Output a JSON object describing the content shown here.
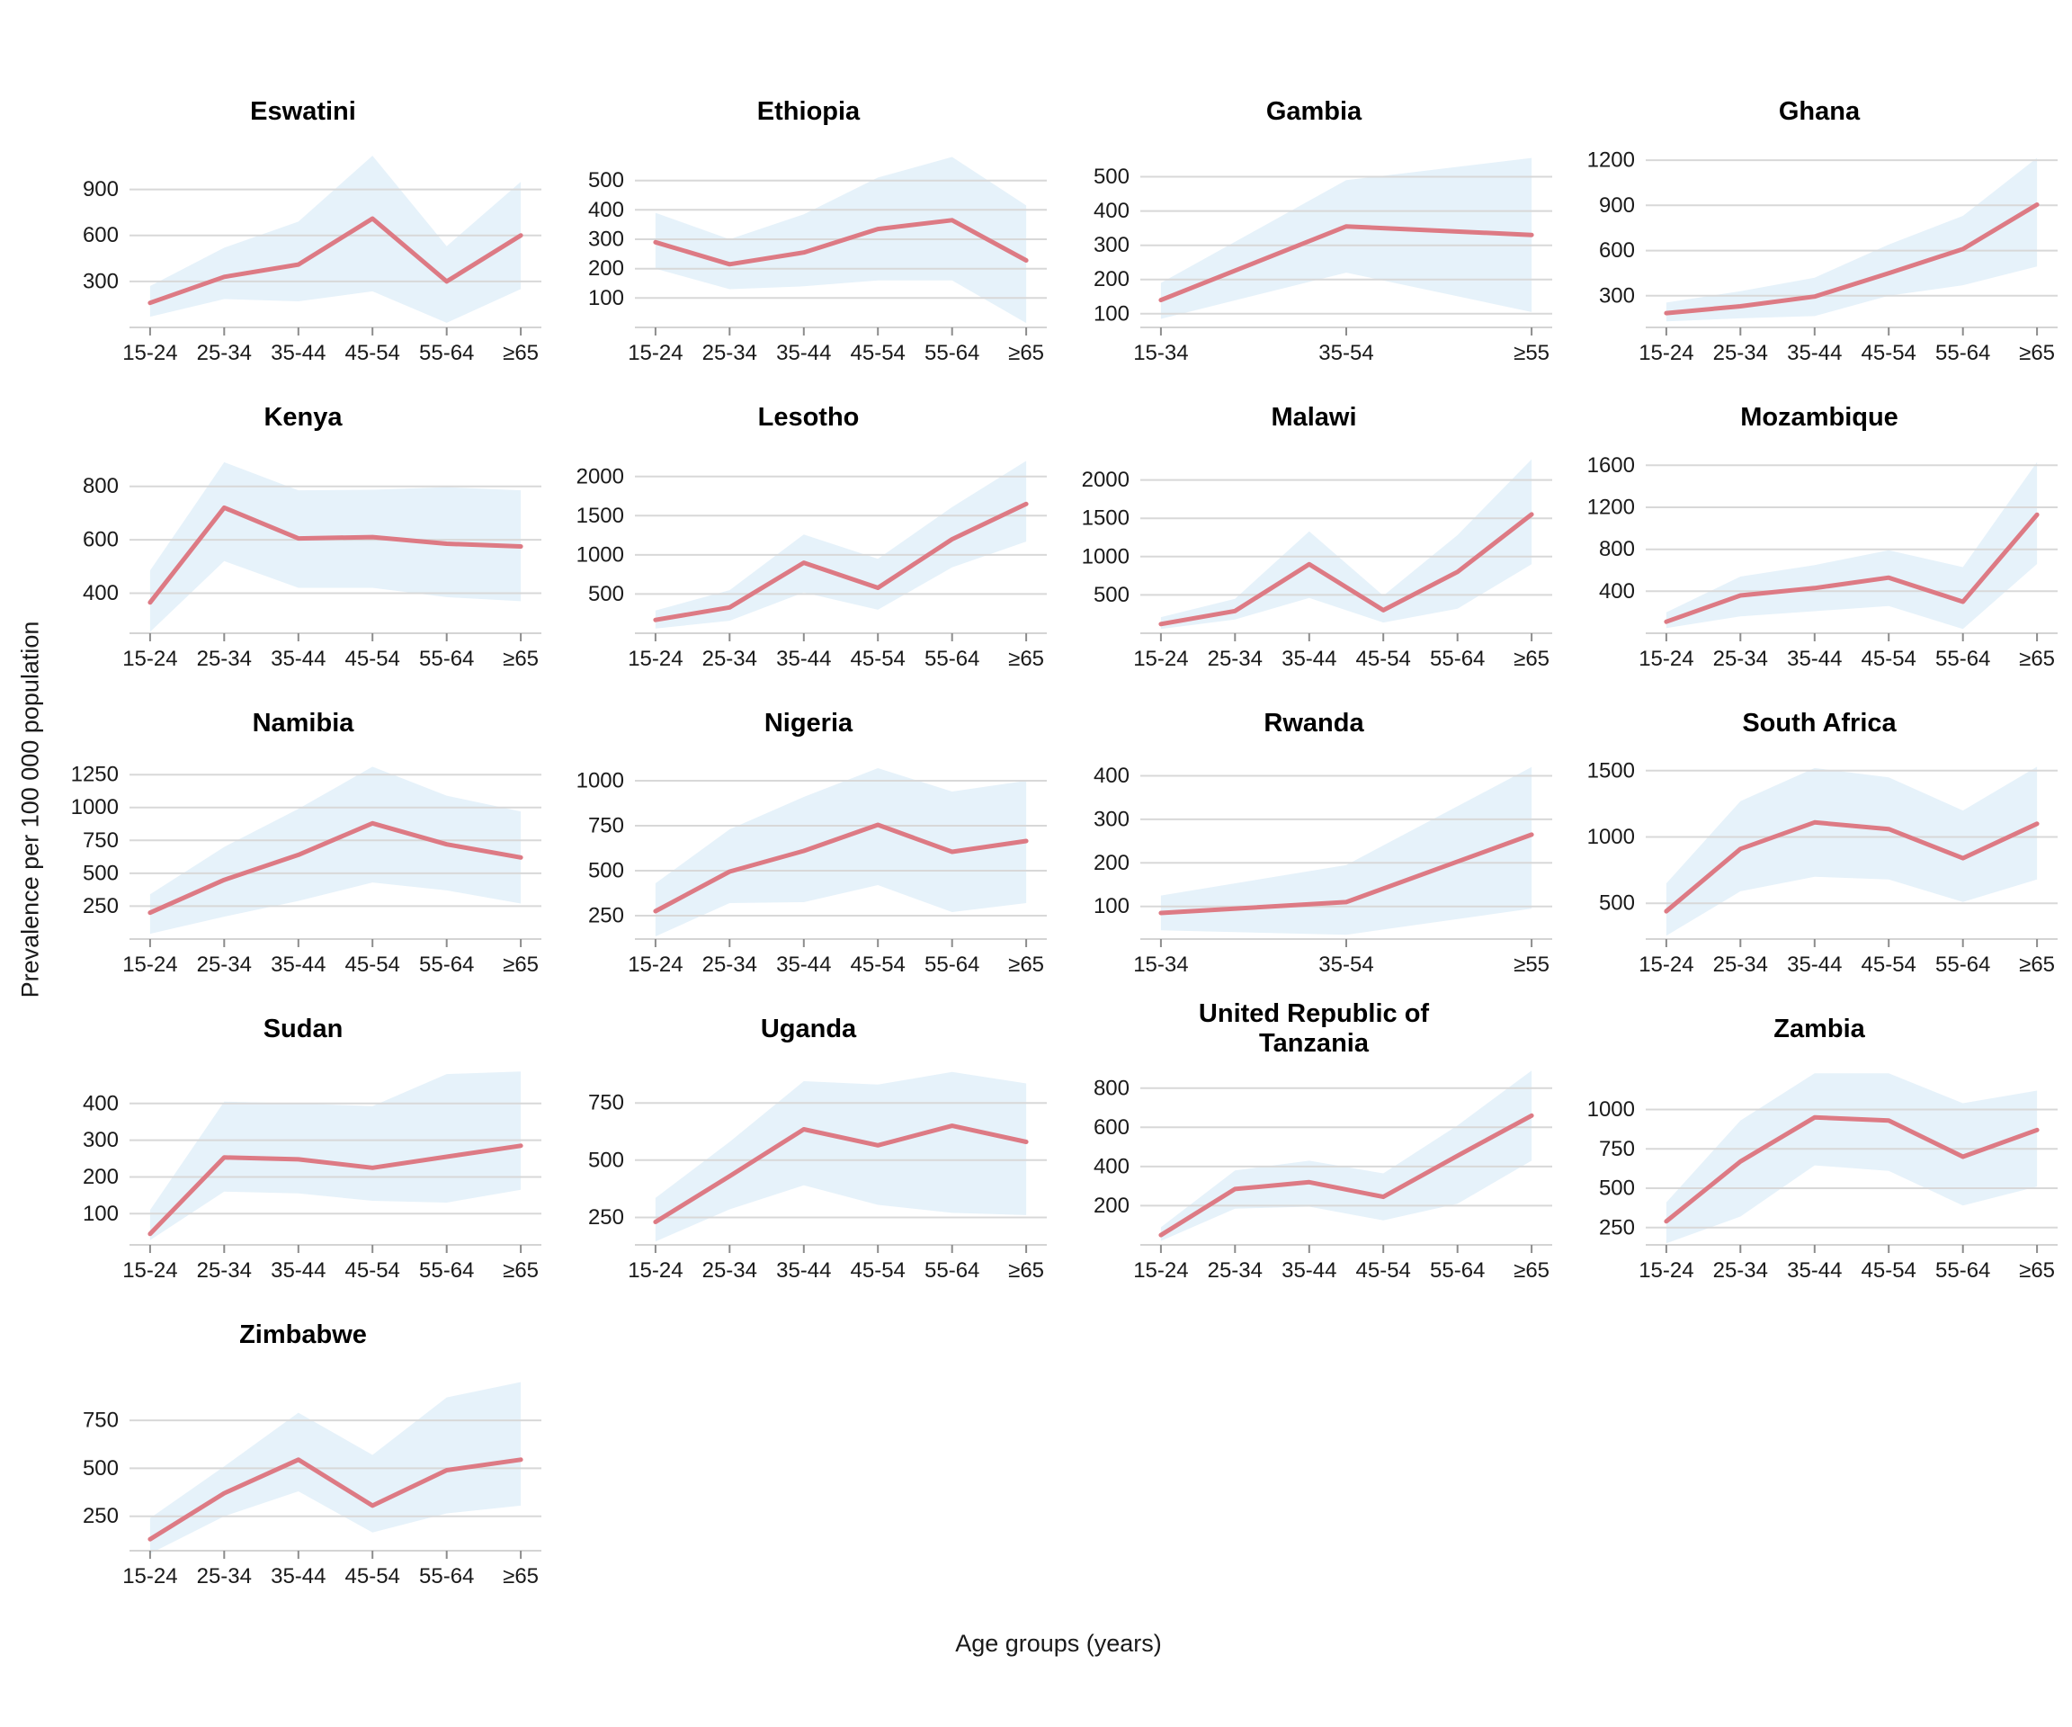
{
  "figure": {
    "ylabel": "Prevalence per 100 000 population",
    "xlabel": "Age groups (years)"
  },
  "colors": {
    "line": "#DD7A84",
    "band": "#E6F2FA",
    "grid": "#D8D8D8",
    "axis": "#D4D4D4",
    "tick": "#8C8C8C",
    "tick_text": "#1A1A1A",
    "title_text": "#000000"
  },
  "chart_data": [
    {
      "type": "line",
      "title": "Eswatini",
      "categories": [
        "15-24",
        "25-34",
        "35-44",
        "45-54",
        "55-64",
        "≥65"
      ],
      "values": [
        160,
        330,
        410,
        710,
        300,
        600
      ],
      "lower": [
        70,
        185,
        170,
        235,
        30,
        250
      ],
      "upper": [
        270,
        520,
        690,
        1120,
        530,
        950
      ],
      "yticks": [
        300,
        600,
        900
      ],
      "ylim": [
        0,
        1150
      ],
      "series": [
        {
          "name": "prevalence",
          "values": [
            160,
            330,
            410,
            710,
            300,
            600
          ]
        }
      ],
      "legend": "none",
      "grid": "horizontal"
    },
    {
      "type": "line",
      "title": "Ethiopia",
      "categories": [
        "15-24",
        "25-34",
        "35-44",
        "45-54",
        "55-64",
        "≥65"
      ],
      "values": [
        290,
        215,
        255,
        335,
        365,
        228
      ],
      "lower": [
        200,
        130,
        140,
        160,
        160,
        15
      ],
      "upper": [
        390,
        300,
        385,
        510,
        580,
        415
      ],
      "yticks": [
        100,
        200,
        300,
        400,
        500
      ],
      "ylim": [
        0,
        600
      ],
      "series": [
        {
          "name": "prevalence",
          "values": [
            290,
            215,
            255,
            335,
            365,
            228
          ]
        }
      ],
      "legend": "none",
      "grid": "horizontal"
    },
    {
      "type": "line",
      "title": "Gambia",
      "categories": [
        "15-34",
        "35-54",
        "≥55"
      ],
      "values": [
        140,
        355,
        330
      ],
      "lower": [
        85,
        220,
        105
      ],
      "upper": [
        190,
        490,
        555
      ],
      "yticks": [
        100,
        200,
        300,
        400,
        500
      ],
      "ylim": [
        60,
        575
      ],
      "series": [
        {
          "name": "prevalence",
          "values": [
            140,
            355,
            330
          ]
        }
      ],
      "legend": "none",
      "grid": "horizontal"
    },
    {
      "type": "line",
      "title": "Ghana",
      "categories": [
        "15-24",
        "25-34",
        "35-44",
        "45-54",
        "55-64",
        "≥65"
      ],
      "values": [
        185,
        230,
        295,
        450,
        610,
        905
      ],
      "lower": [
        130,
        150,
        165,
        300,
        370,
        495
      ],
      "upper": [
        255,
        330,
        420,
        640,
        830,
        1215
      ],
      "yticks": [
        300,
        600,
        900,
        1200
      ],
      "ylim": [
        90,
        1260
      ],
      "series": [
        {
          "name": "prevalence",
          "values": [
            185,
            230,
            295,
            450,
            610,
            905
          ]
        }
      ],
      "legend": "none",
      "grid": "horizontal"
    },
    {
      "type": "line",
      "title": "Kenya",
      "categories": [
        "15-24",
        "25-34",
        "35-44",
        "45-54",
        "55-64",
        "≥65"
      ],
      "values": [
        365,
        720,
        605,
        610,
        585,
        575
      ],
      "lower": [
        255,
        520,
        420,
        420,
        385,
        370
      ],
      "upper": [
        485,
        890,
        785,
        787,
        797,
        785
      ],
      "yticks": [
        400,
        600,
        800
      ],
      "ylim": [
        250,
        910
      ],
      "series": [
        {
          "name": "prevalence",
          "values": [
            365,
            720,
            605,
            610,
            585,
            575
          ]
        }
      ],
      "legend": "none",
      "grid": "horizontal"
    },
    {
      "type": "line",
      "title": "Lesotho",
      "categories": [
        "15-24",
        "25-34",
        "35-44",
        "45-54",
        "55-64",
        "≥65"
      ],
      "values": [
        170,
        330,
        900,
        580,
        1200,
        1650
      ],
      "lower": [
        60,
        160,
        520,
        300,
        840,
        1170
      ],
      "upper": [
        290,
        550,
        1260,
        950,
        1610,
        2200
      ],
      "yticks": [
        500,
        1000,
        1500,
        2000
      ],
      "ylim": [
        0,
        2250
      ],
      "series": [
        {
          "name": "prevalence",
          "values": [
            170,
            330,
            900,
            580,
            1200,
            1650
          ]
        }
      ],
      "legend": "none",
      "grid": "horizontal"
    },
    {
      "type": "line",
      "title": "Malawi",
      "categories": [
        "15-24",
        "25-34",
        "35-44",
        "45-54",
        "55-64",
        "≥65"
      ],
      "values": [
        120,
        290,
        900,
        300,
        800,
        1550
      ],
      "lower": [
        55,
        180,
        460,
        140,
        320,
        900
      ],
      "upper": [
        210,
        450,
        1330,
        490,
        1280,
        2270
      ],
      "yticks": [
        500,
        1000,
        1500,
        2000
      ],
      "ylim": [
        0,
        2300
      ],
      "series": [
        {
          "name": "prevalence",
          "values": [
            120,
            290,
            900,
            300,
            800,
            1550
          ]
        }
      ],
      "legend": "none",
      "grid": "horizontal"
    },
    {
      "type": "line",
      "title": "Mozambique",
      "categories": [
        "15-24",
        "25-34",
        "35-44",
        "45-54",
        "55-64",
        "≥65"
      ],
      "values": [
        110,
        360,
        430,
        530,
        300,
        1130
      ],
      "lower": [
        50,
        160,
        210,
        260,
        40,
        660
      ],
      "upper": [
        200,
        540,
        650,
        790,
        630,
        1630
      ],
      "yticks": [
        400,
        800,
        1200,
        1600
      ],
      "ylim": [
        0,
        1680
      ],
      "series": [
        {
          "name": "prevalence",
          "values": [
            110,
            360,
            430,
            530,
            300,
            1130
          ]
        }
      ],
      "legend": "none",
      "grid": "horizontal"
    },
    {
      "type": "line",
      "title": "Namibia",
      "categories": [
        "15-24",
        "25-34",
        "35-44",
        "45-54",
        "55-64",
        "≥65"
      ],
      "values": [
        200,
        450,
        640,
        880,
        720,
        620
      ],
      "lower": [
        40,
        170,
        290,
        430,
        370,
        270
      ],
      "upper": [
        340,
        700,
        990,
        1310,
        1090,
        970
      ],
      "yticks": [
        250,
        500,
        750,
        1000,
        1250
      ],
      "ylim": [
        0,
        1340
      ],
      "series": [
        {
          "name": "prevalence",
          "values": [
            200,
            450,
            640,
            880,
            720,
            620
          ]
        }
      ],
      "legend": "none",
      "grid": "horizontal"
    },
    {
      "type": "line",
      "title": "Nigeria",
      "categories": [
        "15-24",
        "25-34",
        "35-44",
        "45-54",
        "55-64",
        "≥65"
      ],
      "values": [
        275,
        495,
        610,
        755,
        605,
        665
      ],
      "lower": [
        135,
        320,
        325,
        420,
        270,
        320
      ],
      "upper": [
        430,
        730,
        910,
        1070,
        940,
        1000
      ],
      "yticks": [
        250,
        500,
        750,
        1000
      ],
      "ylim": [
        120,
        1100
      ],
      "series": [
        {
          "name": "prevalence",
          "values": [
            275,
            495,
            610,
            755,
            605,
            665
          ]
        }
      ],
      "legend": "none",
      "grid": "horizontal"
    },
    {
      "type": "line",
      "title": "Rwanda",
      "categories": [
        "15-34",
        "35-54",
        "≥55"
      ],
      "values": [
        85,
        110,
        265
      ],
      "lower": [
        45,
        35,
        95
      ],
      "upper": [
        125,
        195,
        420
      ],
      "yticks": [
        100,
        200,
        300,
        400
      ],
      "ylim": [
        25,
        430
      ],
      "series": [
        {
          "name": "prevalence",
          "values": [
            85,
            110,
            265
          ]
        }
      ],
      "legend": "none",
      "grid": "horizontal"
    },
    {
      "type": "line",
      "title": "South Africa",
      "categories": [
        "15-24",
        "25-34",
        "35-44",
        "45-54",
        "55-64",
        "≥65"
      ],
      "values": [
        440,
        910,
        1110,
        1060,
        840,
        1100
      ],
      "lower": [
        255,
        590,
        700,
        680,
        510,
        680
      ],
      "upper": [
        650,
        1270,
        1520,
        1450,
        1200,
        1530
      ],
      "yticks": [
        500,
        1000,
        1500
      ],
      "ylim": [
        230,
        1560
      ],
      "series": [
        {
          "name": "prevalence",
          "values": [
            440,
            910,
            1110,
            1060,
            840,
            1100
          ]
        }
      ],
      "legend": "none",
      "grid": "horizontal"
    },
    {
      "type": "line",
      "title": "Sudan",
      "categories": [
        "15-24",
        "25-34",
        "35-44",
        "45-54",
        "55-64",
        "≥65"
      ],
      "values": [
        45,
        253,
        248,
        225,
        255,
        285
      ],
      "lower": [
        28,
        160,
        155,
        135,
        130,
        165
      ],
      "upper": [
        110,
        405,
        400,
        393,
        480,
        487
      ],
      "yticks": [
        100,
        200,
        300,
        400
      ],
      "ylim": [
        15,
        495
      ],
      "series": [
        {
          "name": "prevalence",
          "values": [
            45,
            253,
            248,
            225,
            255,
            285
          ]
        }
      ],
      "legend": "none",
      "grid": "horizontal"
    },
    {
      "type": "line",
      "title": "Uganda",
      "categories": [
        "15-24",
        "25-34",
        "35-44",
        "45-54",
        "55-64",
        "≥65"
      ],
      "values": [
        230,
        430,
        635,
        565,
        650,
        580
      ],
      "lower": [
        145,
        285,
        390,
        305,
        270,
        260
      ],
      "upper": [
        335,
        580,
        845,
        830,
        885,
        835
      ],
      "yticks": [
        250,
        500,
        750
      ],
      "ylim": [
        130,
        900
      ],
      "series": [
        {
          "name": "prevalence",
          "values": [
            230,
            430,
            635,
            565,
            650,
            580
          ]
        }
      ],
      "legend": "none",
      "grid": "horizontal"
    },
    {
      "type": "line",
      "title": "United Republic of Tanzania",
      "categories": [
        "15-24",
        "25-34",
        "35-44",
        "45-54",
        "55-64",
        "≥65"
      ],
      "values": [
        50,
        285,
        320,
        245,
        455,
        660
      ],
      "lower": [
        20,
        185,
        195,
        125,
        210,
        430
      ],
      "upper": [
        90,
        380,
        430,
        365,
        610,
        890
      ],
      "yticks": [
        200,
        400,
        600,
        800
      ],
      "ylim": [
        0,
        900
      ],
      "series": [
        {
          "name": "prevalence",
          "values": [
            50,
            285,
            320,
            245,
            455,
            660
          ]
        }
      ],
      "legend": "none",
      "grid": "horizontal"
    },
    {
      "type": "line",
      "title": "Zambia",
      "categories": [
        "15-24",
        "25-34",
        "35-44",
        "45-54",
        "55-64",
        "≥65"
      ],
      "values": [
        290,
        670,
        950,
        930,
        700,
        870
      ],
      "lower": [
        150,
        320,
        645,
        610,
        390,
        510
      ],
      "upper": [
        410,
        930,
        1230,
        1230,
        1040,
        1120
      ],
      "yticks": [
        250,
        500,
        750,
        1000
      ],
      "ylim": [
        140,
        1260
      ],
      "series": [
        {
          "name": "prevalence",
          "values": [
            290,
            670,
            950,
            930,
            700,
            870
          ]
        }
      ],
      "legend": "none",
      "grid": "horizontal"
    },
    {
      "type": "line",
      "title": "Zimbabwe",
      "categories": [
        "15-24",
        "25-34",
        "35-44",
        "45-54",
        "55-64",
        "≥65"
      ],
      "values": [
        130,
        370,
        545,
        305,
        490,
        545
      ],
      "lower": [
        55,
        250,
        380,
        165,
        265,
        305
      ],
      "upper": [
        240,
        510,
        790,
        570,
        870,
        950
      ],
      "yticks": [
        250,
        500,
        750
      ],
      "ylim": [
        70,
        990
      ],
      "series": [
        {
          "name": "prevalence",
          "values": [
            130,
            370,
            545,
            305,
            490,
            545
          ]
        }
      ],
      "legend": "none",
      "grid": "horizontal"
    }
  ]
}
